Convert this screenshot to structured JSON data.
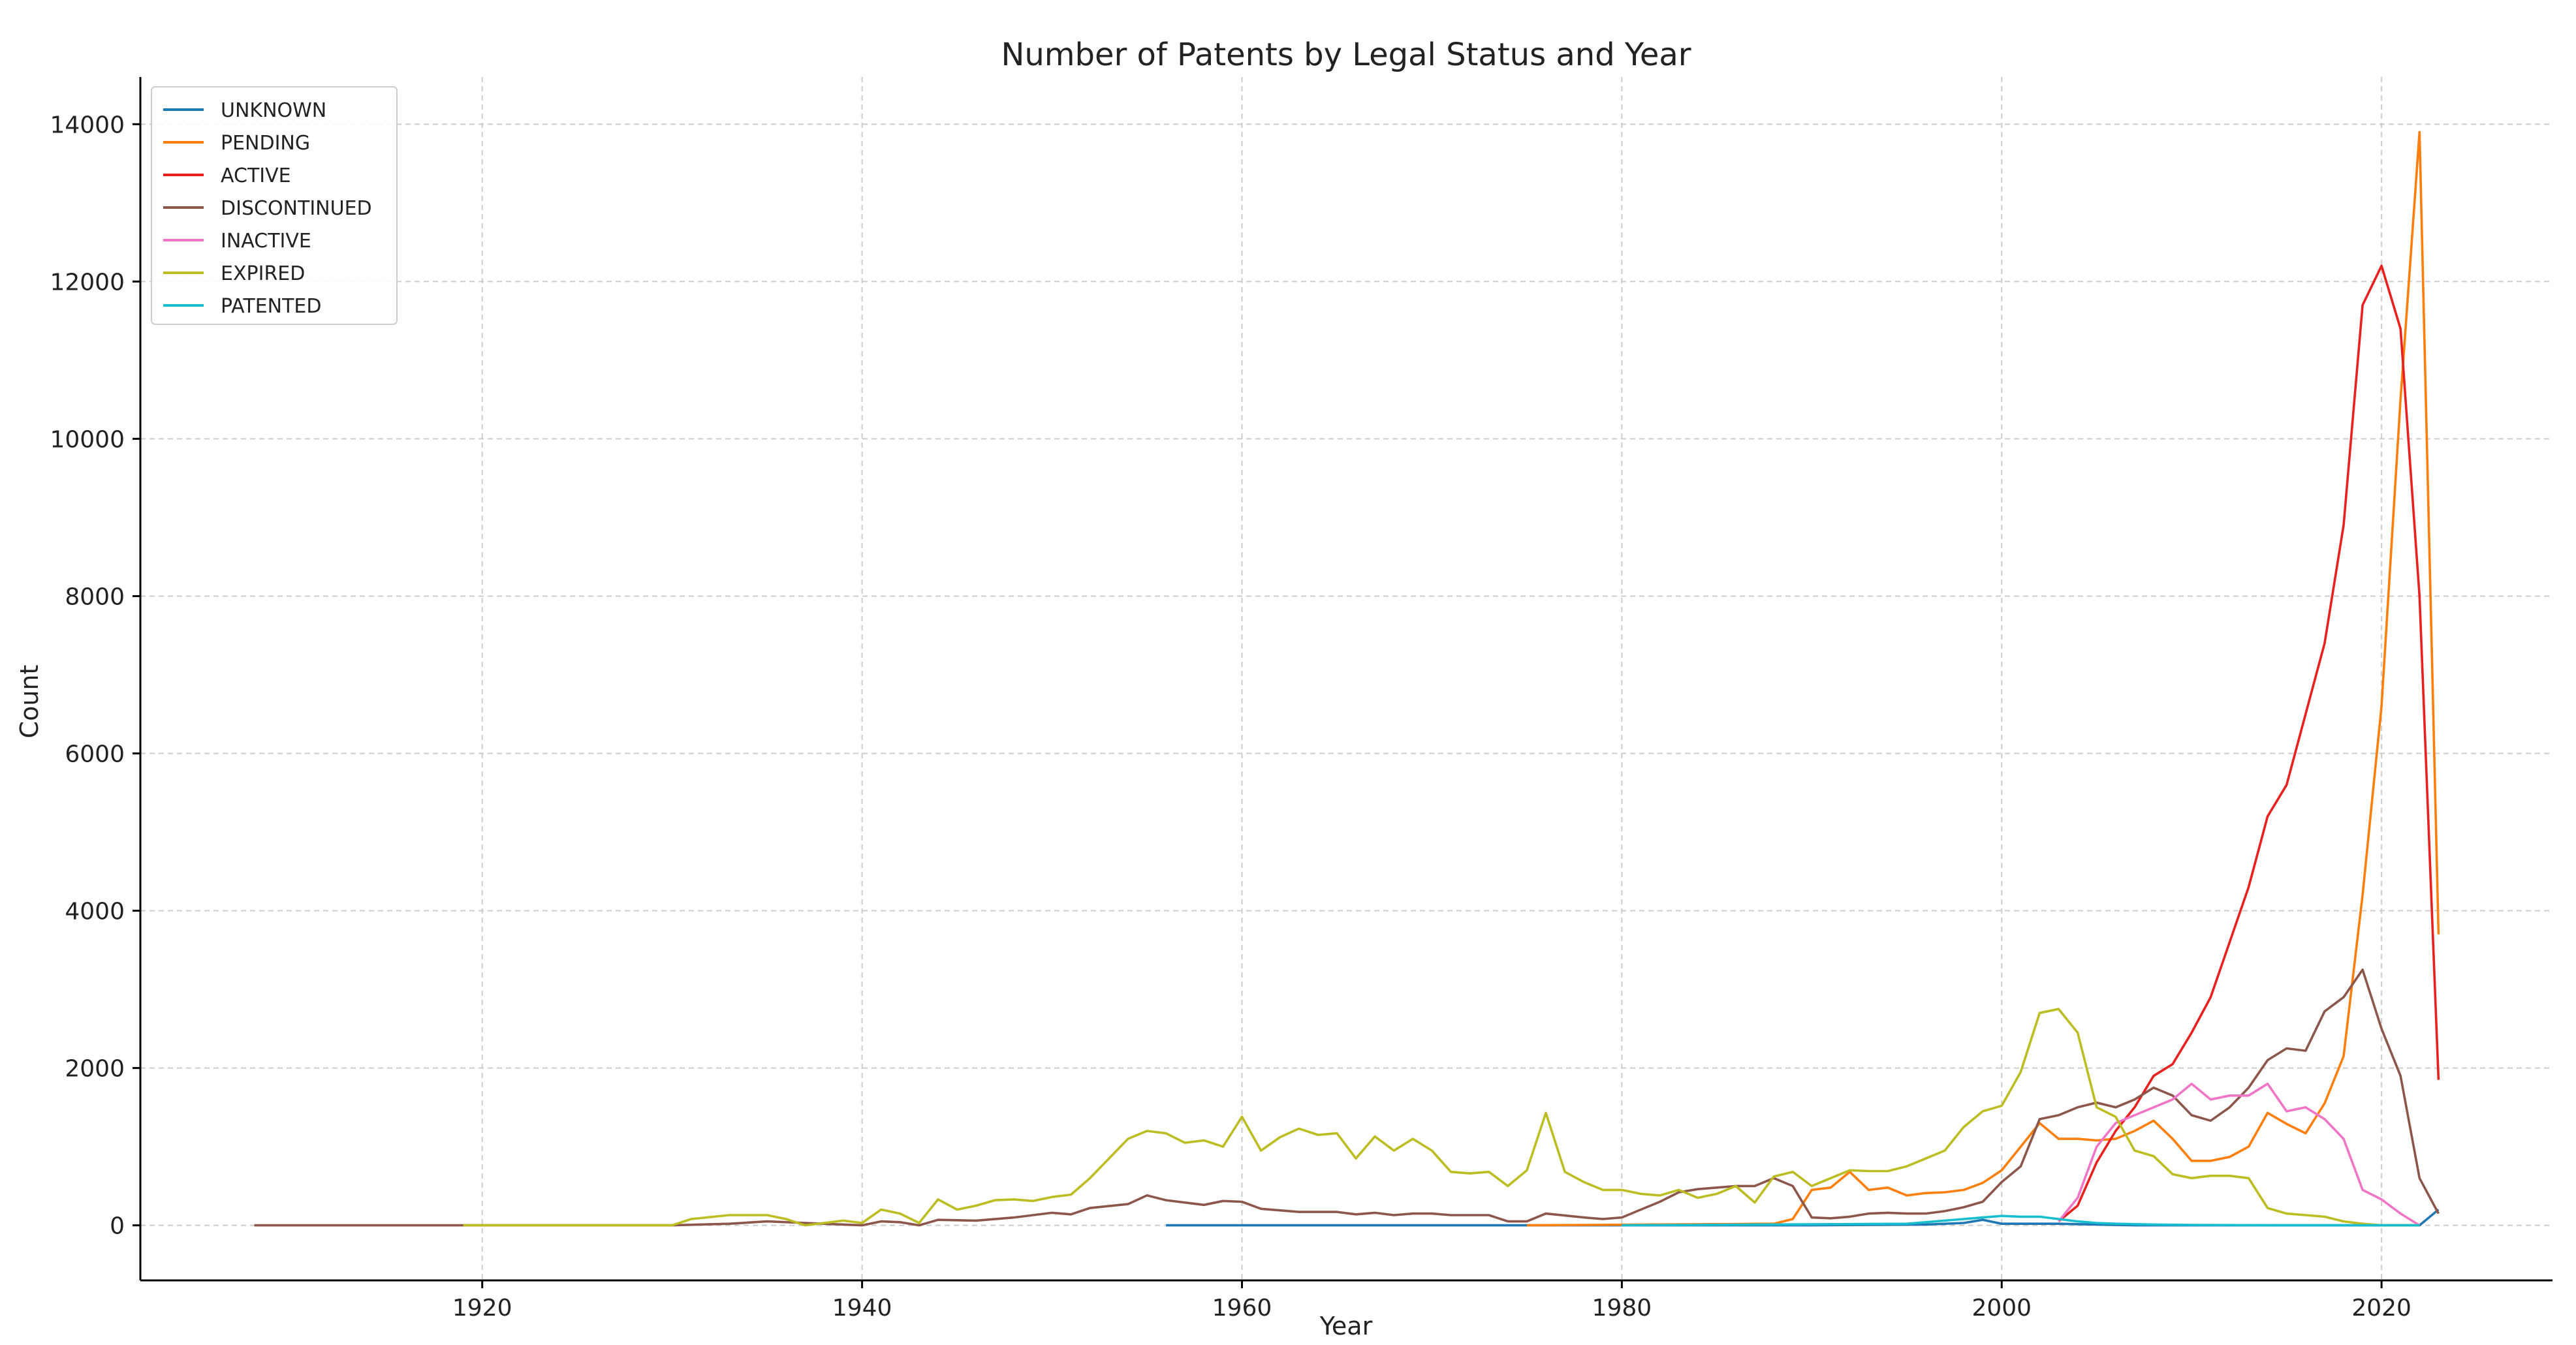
{
  "chart_data": {
    "type": "line",
    "title": "Number of Patents by Legal Status and Year",
    "xlabel": "Year",
    "ylabel": "Count",
    "xlim": [
      1902,
      2029
    ],
    "ylim": [
      -700,
      14600
    ],
    "xticks": [
      1920,
      1940,
      1960,
      1980,
      2000,
      2020
    ],
    "yticks": [
      0,
      2000,
      4000,
      6000,
      8000,
      10000,
      12000,
      14000
    ],
    "grid": true,
    "legend_position": "top-left",
    "series": [
      {
        "name": "UNKNOWN",
        "color": "#1f77b4",
        "x": [
          1956,
          1970,
          1990,
          1996,
          1998,
          1999,
          2000,
          2003,
          2007,
          2015,
          2020,
          2021,
          2022,
          2023
        ],
        "y": [
          0,
          0,
          0,
          10,
          30,
          70,
          20,
          20,
          0,
          0,
          0,
          0,
          0,
          200
        ]
      },
      {
        "name": "PENDING",
        "color": "#ff7f0e",
        "x": [
          1975,
          1988,
          1989,
          1990,
          1991,
          1992,
          1993,
          1994,
          1995,
          1996,
          1997,
          1998,
          1999,
          2000,
          2001,
          2002,
          2003,
          2004,
          2005,
          2006,
          2007,
          2008,
          2009,
          2010,
          2011,
          2012,
          2013,
          2014,
          2015,
          2016,
          2017,
          2018,
          2019,
          2020,
          2021,
          2022,
          2023
        ],
        "y": [
          0,
          20,
          80,
          450,
          480,
          680,
          450,
          480,
          380,
          410,
          420,
          450,
          540,
          700,
          1000,
          1300,
          1100,
          1100,
          1080,
          1100,
          1200,
          1330,
          1100,
          820,
          820,
          870,
          1000,
          1430,
          1290,
          1170,
          1550,
          2150,
          4200,
          6600,
          10500,
          13900,
          3700
        ]
      },
      {
        "name": "ACTIVE",
        "color": "#e8201e",
        "x": [
          2003,
          2004,
          2005,
          2006,
          2007,
          2008,
          2009,
          2010,
          2011,
          2012,
          2013,
          2014,
          2015,
          2016,
          2017,
          2018,
          2019,
          2020,
          2021,
          2022,
          2023
        ],
        "y": [
          50,
          250,
          800,
          1200,
          1500,
          1900,
          2050,
          2450,
          2900,
          3600,
          4300,
          5200,
          5600,
          6500,
          7400,
          8900,
          11700,
          12200,
          11400,
          8000,
          1850
        ]
      },
      {
        "name": "DISCONTINUED",
        "color": "#8c564b",
        "x": [
          1908,
          1919,
          1930,
          1933,
          1935,
          1937,
          1940,
          1941,
          1942,
          1943,
          1944,
          1946,
          1948,
          1950,
          1951,
          1952,
          1954,
          1955,
          1956,
          1958,
          1959,
          1960,
          1961,
          1963,
          1965,
          1966,
          1967,
          1968,
          1969,
          1970,
          1971,
          1972,
          1973,
          1974,
          1975,
          1976,
          1978,
          1979,
          1980,
          1981,
          1982,
          1983,
          1984,
          1985,
          1986,
          1987,
          1988,
          1989,
          1990,
          1991,
          1992,
          1993,
          1994,
          1995,
          1996,
          1997,
          1998,
          1999,
          2000,
          2001,
          2002,
          2003,
          2004,
          2005,
          2006,
          2007,
          2008,
          2009,
          2010,
          2011,
          2012,
          2013,
          2014,
          2015,
          2016,
          2017,
          2018,
          2019,
          2020,
          2021,
          2022,
          2023
        ],
        "y": [
          0,
          0,
          0,
          20,
          50,
          30,
          0,
          50,
          40,
          0,
          70,
          60,
          100,
          160,
          140,
          220,
          270,
          380,
          320,
          260,
          310,
          300,
          210,
          170,
          170,
          140,
          160,
          130,
          150,
          150,
          130,
          130,
          130,
          50,
          50,
          150,
          100,
          80,
          100,
          200,
          300,
          420,
          460,
          480,
          500,
          500,
          600,
          500,
          100,
          90,
          110,
          150,
          160,
          150,
          150,
          180,
          230,
          300,
          550,
          750,
          1350,
          1400,
          1500,
          1560,
          1500,
          1600,
          1750,
          1650,
          1400,
          1330,
          1500,
          1750,
          2100,
          2250,
          2220,
          2720,
          2900,
          3250,
          2500,
          1900,
          600,
          150
        ]
      },
      {
        "name": "INACTIVE",
        "color": "#f075c6",
        "x": [
          2003,
          2004,
          2005,
          2006,
          2007,
          2008,
          2009,
          2010,
          2011,
          2012,
          2013,
          2014,
          2015,
          2016,
          2017,
          2018,
          2019,
          2020,
          2021,
          2022
        ],
        "y": [
          50,
          350,
          1000,
          1300,
          1400,
          1500,
          1600,
          1800,
          1600,
          1650,
          1650,
          1800,
          1450,
          1500,
          1350,
          1100,
          450,
          330,
          150,
          0
        ]
      },
      {
        "name": "EXPIRED",
        "color": "#bcbd22",
        "x": [
          1919,
          1930,
          1931,
          1933,
          1935,
          1936,
          1937,
          1939,
          1940,
          1941,
          1942,
          1943,
          1944,
          1945,
          1946,
          1947,
          1948,
          1949,
          1950,
          1951,
          1952,
          1953,
          1954,
          1955,
          1956,
          1957,
          1958,
          1959,
          1960,
          1961,
          1962,
          1963,
          1964,
          1965,
          1966,
          1967,
          1968,
          1969,
          1970,
          1971,
          1972,
          1973,
          1974,
          1975,
          1976,
          1977,
          1978,
          1979,
          1980,
          1981,
          1982,
          1983,
          1984,
          1985,
          1986,
          1987,
          1988,
          1989,
          1990,
          1991,
          1992,
          1993,
          1994,
          1995,
          1996,
          1997,
          1998,
          1999,
          2000,
          2001,
          2002,
          2003,
          2004,
          2005,
          2006,
          2007,
          2008,
          2009,
          2010,
          2011,
          2012,
          2013,
          2014,
          2015,
          2016,
          2017,
          2018,
          2019,
          2020,
          2021,
          2022
        ],
        "y": [
          0,
          0,
          80,
          130,
          130,
          80,
          0,
          60,
          30,
          200,
          150,
          30,
          330,
          200,
          250,
          320,
          330,
          310,
          360,
          390,
          600,
          850,
          1100,
          1200,
          1170,
          1050,
          1080,
          1000,
          1380,
          950,
          1120,
          1230,
          1150,
          1170,
          850,
          1130,
          950,
          1100,
          950,
          680,
          660,
          680,
          500,
          700,
          1430,
          680,
          550,
          450,
          450,
          400,
          380,
          450,
          350,
          400,
          500,
          290,
          620,
          680,
          500,
          600,
          700,
          690,
          690,
          750,
          850,
          950,
          1250,
          1450,
          1520,
          1950,
          2700,
          2750,
          2450,
          1500,
          1380,
          950,
          880,
          650,
          600,
          630,
          630,
          600,
          220,
          150,
          130,
          110,
          50,
          20,
          0,
          0,
          0
        ]
      },
      {
        "name": "PATENTED",
        "color": "#17becf",
        "x": [
          1980,
          1995,
          1998,
          1999,
          2000,
          2001,
          2002,
          2003,
          2004,
          2005,
          2006,
          2008,
          2010,
          2015,
          2020,
          2022
        ],
        "y": [
          0,
          20,
          80,
          100,
          120,
          110,
          110,
          80,
          50,
          30,
          20,
          10,
          5,
          0,
          0,
          0
        ]
      }
    ]
  }
}
